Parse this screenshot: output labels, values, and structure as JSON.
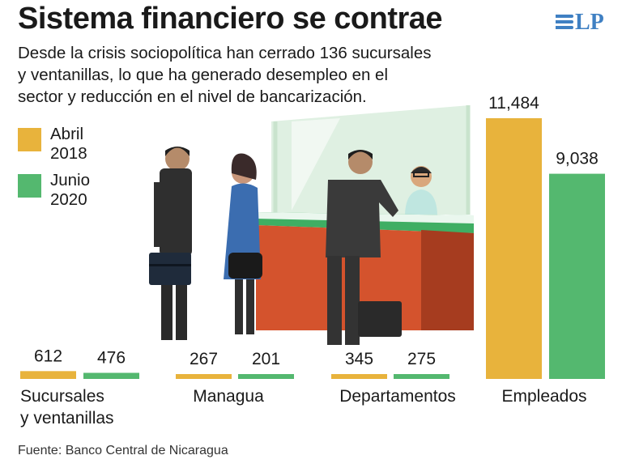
{
  "header": {
    "title": "Sistema financiero se contrae",
    "subtitle_lines": [
      "Desde la crisis sociopolítica han cerrado 136 sucursales",
      "y ventanillas, lo que ha generado desempleo en el",
      "sector y reducción en el nivel de bancarización."
    ],
    "logo_text": "LP"
  },
  "colors": {
    "april": "#e8b33c",
    "june": "#54b86f",
    "logo": "#3f80c3"
  },
  "chart_data": {
    "type": "bar",
    "categories": [
      "Sucursales y ventanillas",
      "Managua",
      "Departamentos",
      "Empleados"
    ],
    "category_lines": [
      [
        "Sucursales",
        "y ventanillas"
      ],
      [
        "Managua"
      ],
      [
        "Departamentos"
      ],
      [
        "Empleados"
      ]
    ],
    "series": [
      {
        "name": "Abril 2018",
        "legend_lines": [
          "Abril",
          "2018"
        ],
        "values": [
          612,
          267,
          345,
          11484
        ],
        "labels": [
          "612",
          "267",
          "345",
          "11,484"
        ]
      },
      {
        "name": "Junio 2020",
        "legend_lines": [
          "Junio",
          "2020"
        ],
        "values": [
          476,
          201,
          275,
          9038
        ],
        "labels": [
          "476",
          "201",
          "275",
          "9,038"
        ]
      }
    ],
    "title": "Sistema financiero se contrae",
    "xlabel": "",
    "ylabel": ""
  },
  "source": "Fuente: Banco Central de Nicaragua"
}
